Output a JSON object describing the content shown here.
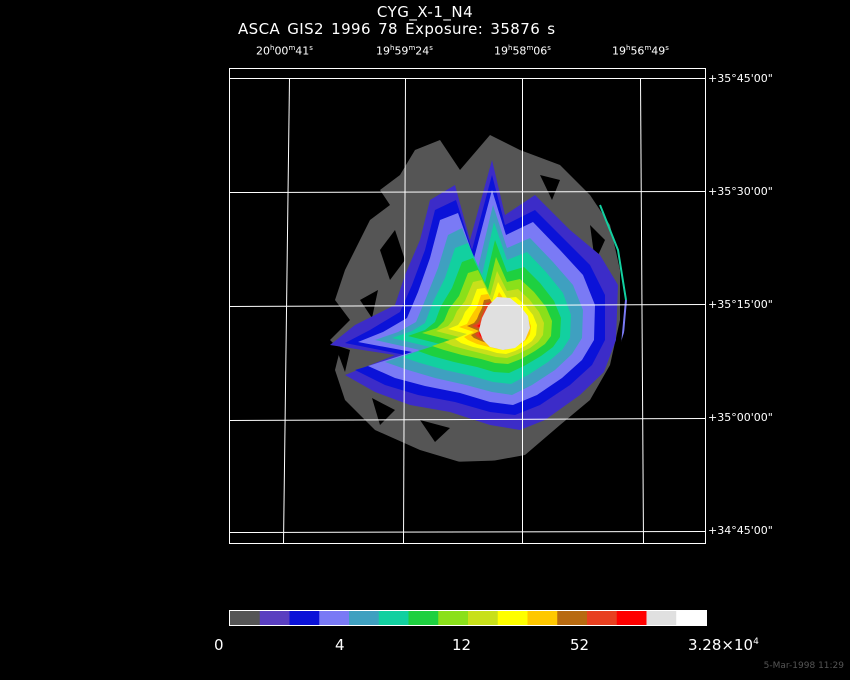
{
  "header": {
    "title": "CYG_X-1_N4",
    "subtitle": "ASCA GIS2   1996     78    Exposure: 35876 s"
  },
  "ra_labels": [
    {
      "h": "20",
      "hs": "h",
      "m": "00",
      "ms": "m",
      "s": "41",
      "ss": "s"
    },
    {
      "h": "19",
      "hs": "h",
      "m": "59",
      "ms": "m",
      "s": "24",
      "ss": "s"
    },
    {
      "h": "19",
      "hs": "h",
      "m": "58",
      "ms": "m",
      "s": "06",
      "ss": "s"
    },
    {
      "h": "19",
      "hs": "h",
      "m": "56",
      "ms": "m",
      "s": "49",
      "ss": "s"
    }
  ],
  "dec_labels": [
    "+35°45'00\"",
    "+35°30'00\"",
    "+35°15'00\"",
    "+35°00'00\"",
    "+34°45'00\""
  ],
  "colorbar": {
    "colors": [
      "#555555",
      "#5a3fc0",
      "#0b12d8",
      "#7a7af5",
      "#3fa0c0",
      "#12d0a0",
      "#1ed040",
      "#8ae01a",
      "#c8e01a",
      "#ffff00",
      "#ffc800",
      "#b86a10",
      "#e84020",
      "#ff0000",
      "#e0e0e0",
      "#ffffff"
    ],
    "labels": [
      "0",
      "4",
      "12",
      "52",
      "3.28×10",
      "4"
    ]
  },
  "footer": {
    "timestamp": "5-Mar-1998 11:29"
  }
}
